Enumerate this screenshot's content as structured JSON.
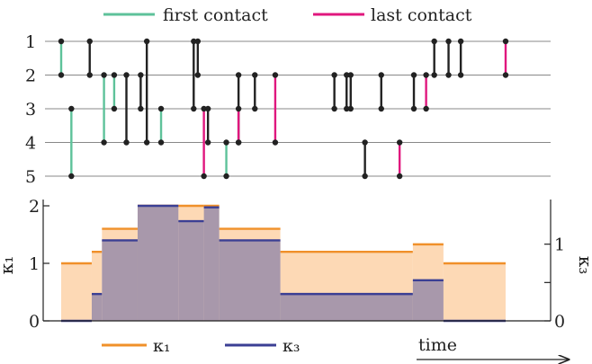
{
  "colors": {
    "first_contact": "#5ec29a",
    "last_contact": "#e0177e",
    "normal_contact": "#222222",
    "kappa1": "#f0902a",
    "kappa1_fill": "#fdd9b5",
    "kappa3": "#3b3f94",
    "kappa3_fill": "#a898ab",
    "timeline": "#888888"
  },
  "chart_data": [
    {
      "type": "timeline",
      "legend": [
        {
          "key": "first",
          "label": "first contact"
        },
        {
          "key": "last",
          "label": "last contact"
        }
      ],
      "legend_position": "top",
      "rows": [
        "1",
        "2",
        "3",
        "4",
        "5"
      ],
      "time_label": "time",
      "contacts": [
        {
          "t": 0.0,
          "a": 1,
          "b": 2,
          "kind": "first"
        },
        {
          "t": 0.5,
          "a": 3,
          "b": 5,
          "kind": "first"
        },
        {
          "t": 1.4,
          "a": 1,
          "b": 2,
          "kind": "normal"
        },
        {
          "t": 2.1,
          "a": 2,
          "b": 4,
          "kind": "first"
        },
        {
          "t": 2.6,
          "a": 2,
          "b": 3,
          "kind": "first"
        },
        {
          "t": 3.2,
          "a": 2,
          "b": 4,
          "kind": "normal"
        },
        {
          "t": 3.9,
          "a": 2,
          "b": 3,
          "kind": "normal"
        },
        {
          "t": 4.2,
          "a": 1,
          "b": 4,
          "kind": "normal"
        },
        {
          "t": 4.9,
          "a": 3,
          "b": 4,
          "kind": "first"
        },
        {
          "t": 6.5,
          "a": 1,
          "b": 3,
          "kind": "normal"
        },
        {
          "t": 6.7,
          "a": 1,
          "b": 2,
          "kind": "normal"
        },
        {
          "t": 7.0,
          "a": 3,
          "b": 5,
          "kind": "last"
        },
        {
          "t": 7.2,
          "a": 3,
          "b": 4,
          "kind": "normal"
        },
        {
          "t": 8.1,
          "a": 4,
          "b": 5,
          "kind": "first"
        },
        {
          "t": 8.7,
          "a": 2,
          "b": 4,
          "kind": "normal"
        },
        {
          "t": 8.7,
          "a": 3,
          "b": 4,
          "kind": "last"
        },
        {
          "t": 9.5,
          "a": 2,
          "b": 3,
          "kind": "normal"
        },
        {
          "t": 10.5,
          "a": 2,
          "b": 4,
          "kind": "last"
        },
        {
          "t": 13.4,
          "a": 2,
          "b": 3,
          "kind": "normal"
        },
        {
          "t": 14.0,
          "a": 2,
          "b": 3,
          "kind": "normal"
        },
        {
          "t": 14.2,
          "a": 2,
          "b": 3,
          "kind": "normal"
        },
        {
          "t": 14.9,
          "a": 4,
          "b": 5,
          "kind": "normal"
        },
        {
          "t": 15.7,
          "a": 2,
          "b": 3,
          "kind": "normal"
        },
        {
          "t": 16.6,
          "a": 4,
          "b": 5,
          "kind": "last"
        },
        {
          "t": 17.3,
          "a": 2,
          "b": 3,
          "kind": "normal"
        },
        {
          "t": 17.9,
          "a": 2,
          "b": 3,
          "kind": "last"
        },
        {
          "t": 18.3,
          "a": 1,
          "b": 2,
          "kind": "normal"
        },
        {
          "t": 19.0,
          "a": 1,
          "b": 2,
          "kind": "normal"
        },
        {
          "t": 19.6,
          "a": 1,
          "b": 2,
          "kind": "normal"
        },
        {
          "t": 21.8,
          "a": 1,
          "b": 2,
          "kind": "last"
        }
      ]
    },
    {
      "type": "area",
      "step": true,
      "x_range": [
        0,
        21.8
      ],
      "left_axis": {
        "label": "κ₁",
        "ylim": [
          0,
          2.0
        ],
        "ticks": [
          "0",
          "1",
          "2"
        ]
      },
      "right_axis": {
        "label": "κ₃",
        "ylim": [
          0,
          1.5
        ],
        "ticks": [
          "0",
          "1"
        ]
      },
      "series": [
        {
          "name": "κ₁",
          "axis": "left",
          "steps": [
            {
              "x0": 0.0,
              "x1": 1.5,
              "y": 1.0
            },
            {
              "x0": 1.5,
              "x1": 2.0,
              "y": 1.2
            },
            {
              "x0": 2.0,
              "x1": 3.75,
              "y": 1.6
            },
            {
              "x0": 3.75,
              "x1": 5.75,
              "y": 2.0
            },
            {
              "x0": 5.75,
              "x1": 7.0,
              "y": 2.0
            },
            {
              "x0": 7.0,
              "x1": 7.75,
              "y": 2.0
            },
            {
              "x0": 7.75,
              "x1": 10.75,
              "y": 1.6
            },
            {
              "x0": 10.75,
              "x1": 17.25,
              "y": 1.2
            },
            {
              "x0": 17.25,
              "x1": 18.75,
              "y": 1.33
            },
            {
              "x0": 18.75,
              "x1": 21.8,
              "y": 1.0
            }
          ]
        },
        {
          "name": "κ₃",
          "axis": "right",
          "steps": [
            {
              "x0": 0.0,
              "x1": 1.5,
              "y": 0.0
            },
            {
              "x0": 1.5,
              "x1": 2.0,
              "y": 0.35
            },
            {
              "x0": 2.0,
              "x1": 3.75,
              "y": 1.05
            },
            {
              "x0": 3.75,
              "x1": 5.75,
              "y": 1.5
            },
            {
              "x0": 5.75,
              "x1": 7.0,
              "y": 1.3
            },
            {
              "x0": 7.0,
              "x1": 7.75,
              "y": 1.48
            },
            {
              "x0": 7.75,
              "x1": 10.75,
              "y": 1.05
            },
            {
              "x0": 10.75,
              "x1": 17.25,
              "y": 0.35
            },
            {
              "x0": 17.25,
              "x1": 18.75,
              "y": 0.53
            },
            {
              "x0": 18.75,
              "x1": 21.8,
              "y": 0.0
            }
          ]
        }
      ],
      "legend": [
        "κ₁",
        "κ₃"
      ],
      "legend_position": "bottom"
    }
  ]
}
